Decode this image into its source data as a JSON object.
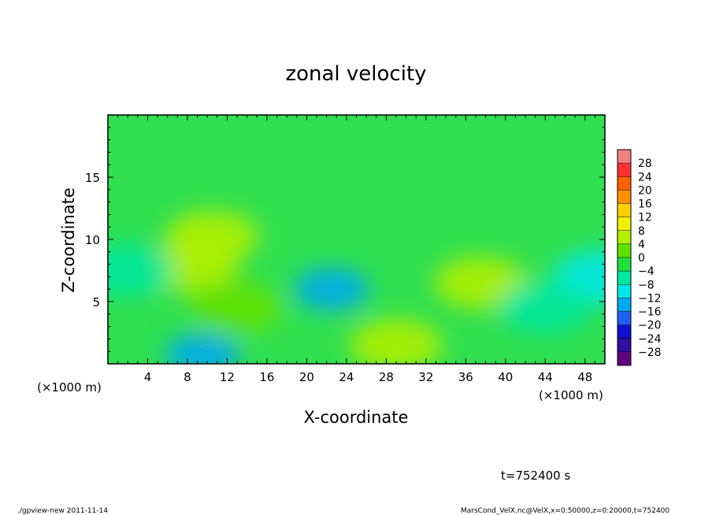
{
  "chart_data": {
    "type": "heatmap",
    "title": "zonal velocity",
    "xlabel": "X-coordinate",
    "ylabel": "Z-coordinate",
    "x_unit_left": "(×1000 m)",
    "x_unit_right": "(×1000 m)",
    "xlim": [
      0,
      50
    ],
    "ylim": [
      0,
      20
    ],
    "x_ticks": [
      4,
      8,
      12,
      16,
      20,
      24,
      28,
      32,
      36,
      40,
      44,
      48
    ],
    "x_tick_labels": [
      "4",
      "8",
      "12",
      "16",
      "20",
      "24",
      "28",
      "32",
      "36",
      "40",
      "44",
      "48"
    ],
    "y_ticks": [
      5,
      10,
      15
    ],
    "y_tick_labels": [
      "5",
      "10",
      "15"
    ],
    "colorbar": {
      "levels": [
        28,
        24,
        20,
        16,
        12,
        8,
        4,
        0,
        -4,
        -8,
        -12,
        -16,
        -20,
        -24,
        -28
      ],
      "labels": [
        "28",
        "24",
        "20",
        "16",
        "12",
        "8",
        "4",
        "0",
        "−4",
        "−8",
        "−12",
        "−16",
        "−20",
        "−24",
        "−28"
      ],
      "colors": [
        "#f08080",
        "#ff3030",
        "#ff6000",
        "#ff9000",
        "#ffd000",
        "#f0f000",
        "#b0f000",
        "#60e000",
        "#20e040",
        "#00e8a0",
        "#00e8e8",
        "#00a8f0",
        "#2060f0",
        "#1010d0",
        "#3010a0",
        "#600080"
      ]
    },
    "features": [
      {
        "x": 8.5,
        "z": 7.8,
        "value": 7
      },
      {
        "x": 10.5,
        "z": 10.2,
        "value": 6
      },
      {
        "x": 2.0,
        "z": 7.5,
        "value": -7
      },
      {
        "x": 9.5,
        "z": 0.7,
        "value": -14
      },
      {
        "x": 22.5,
        "z": 6.0,
        "value": -12
      },
      {
        "x": 37.5,
        "z": 6.5,
        "value": 5
      },
      {
        "x": 49.5,
        "z": 7.0,
        "value": -8
      },
      {
        "x": 44.0,
        "z": 4.5,
        "value": -5
      },
      {
        "x": 29.0,
        "z": 1.5,
        "value": 6
      },
      {
        "x": 13.0,
        "z": 4.5,
        "value": 3
      }
    ]
  },
  "time_label": "t=752400 s",
  "footer_left": "./gpview-new  2011-11-14",
  "footer_right": "MarsCond_VelX.nc@VelX,x=0:50000,z=0:20000,t=752400"
}
